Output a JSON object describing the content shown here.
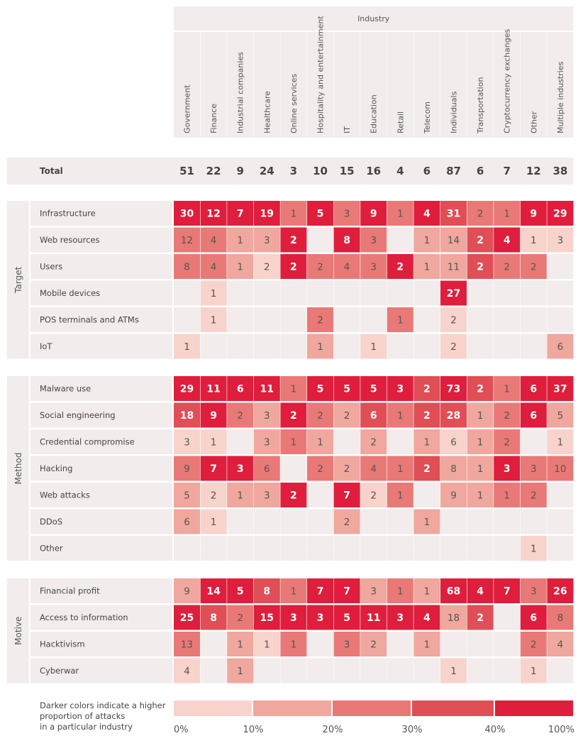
{
  "chart_data": {
    "type": "heatmap",
    "title": "",
    "column_header": "Industry",
    "columns": [
      "Government",
      "Finance",
      "Industrial companies",
      "Healthcare",
      "Online services",
      "Hospitality and entertainment",
      "IT",
      "Education",
      "Retail",
      "Telecom",
      "Individuals",
      "Transportation",
      "Cryptocurrency exchanges",
      "Other",
      "Multiple industries"
    ],
    "total_label": "Total",
    "totals": [
      51,
      22,
      9,
      24,
      3,
      10,
      15,
      16,
      4,
      6,
      87,
      6,
      7,
      12,
      38
    ],
    "groups": [
      {
        "name": "Target",
        "rows": [
          {
            "label": "Infrastructure",
            "values": [
              30,
              12,
              7,
              19,
              1,
              5,
              3,
              9,
              1,
              4,
              31,
              2,
              1,
              9,
              29
            ],
            "shades": [
              5,
              5,
              5,
              5,
              3,
              5,
              3,
              5,
              3,
              5,
              4,
              3,
              3,
              5,
              5
            ]
          },
          {
            "label": "Web resources",
            "values": [
              12,
              4,
              1,
              3,
              2,
              null,
              8,
              3,
              null,
              1,
              14,
              2,
              4,
              1,
              3
            ],
            "shades": [
              3,
              3,
              2,
              2,
              5,
              0,
              5,
              3,
              0,
              2,
              2,
              4,
              5,
              1,
              1
            ]
          },
          {
            "label": "Users",
            "values": [
              8,
              4,
              1,
              2,
              2,
              2,
              4,
              3,
              2,
              1,
              11,
              2,
              2,
              2,
              null
            ],
            "shades": [
              3,
              3,
              2,
              1,
              5,
              3,
              3,
              3,
              5,
              2,
              2,
              4,
              3,
              3,
              0
            ]
          },
          {
            "label": "Mobile devices",
            "values": [
              null,
              1,
              null,
              null,
              null,
              null,
              null,
              null,
              null,
              null,
              27,
              null,
              null,
              null,
              null
            ],
            "shades": [
              0,
              1,
              0,
              0,
              0,
              0,
              0,
              0,
              0,
              0,
              5,
              0,
              0,
              0,
              0
            ]
          },
          {
            "label": "POS terminals and ATMs",
            "values": [
              null,
              1,
              null,
              null,
              null,
              2,
              null,
              null,
              1,
              null,
              2,
              null,
              null,
              null,
              null
            ],
            "shades": [
              0,
              1,
              0,
              0,
              0,
              3,
              0,
              0,
              3,
              0,
              1,
              0,
              0,
              0,
              0
            ]
          },
          {
            "label": "IoT",
            "values": [
              1,
              null,
              null,
              null,
              null,
              1,
              null,
              1,
              null,
              null,
              2,
              null,
              null,
              null,
              6
            ],
            "shades": [
              1,
              0,
              0,
              0,
              0,
              2,
              0,
              1,
              0,
              0,
              1,
              0,
              0,
              0,
              2
            ]
          }
        ]
      },
      {
        "name": "Method",
        "rows": [
          {
            "label": "Malware use",
            "values": [
              29,
              11,
              6,
              11,
              1,
              5,
              5,
              5,
              3,
              2,
              73,
              2,
              1,
              6,
              37
            ],
            "shades": [
              5,
              5,
              5,
              5,
              3,
              5,
              5,
              5,
              5,
              4,
              5,
              4,
              3,
              5,
              5
            ]
          },
          {
            "label": "Social engineering",
            "values": [
              18,
              9,
              2,
              3,
              2,
              2,
              2,
              6,
              1,
              2,
              28,
              1,
              2,
              6,
              5
            ],
            "shades": [
              4,
              5,
              3,
              2,
              5,
              3,
              2,
              4,
              3,
              4,
              4,
              2,
              3,
              5,
              2
            ]
          },
          {
            "label": "Credential compromise",
            "values": [
              3,
              1,
              null,
              3,
              1,
              1,
              null,
              2,
              null,
              1,
              6,
              1,
              2,
              null,
              1
            ],
            "shades": [
              1,
              1,
              0,
              2,
              3,
              2,
              0,
              2,
              0,
              2,
              1,
              2,
              3,
              0,
              1
            ]
          },
          {
            "label": "Hacking",
            "values": [
              9,
              7,
              3,
              6,
              null,
              2,
              2,
              4,
              1,
              2,
              8,
              1,
              3,
              3,
              10
            ],
            "shades": [
              3,
              5,
              5,
              3,
              0,
              3,
              2,
              3,
              3,
              4,
              2,
              2,
              5,
              3,
              3
            ]
          },
          {
            "label": "Web attacks",
            "values": [
              5,
              2,
              1,
              3,
              2,
              null,
              7,
              2,
              1,
              null,
              9,
              1,
              1,
              2,
              null
            ],
            "shades": [
              2,
              1,
              2,
              2,
              5,
              0,
              5,
              1,
              3,
              0,
              2,
              2,
              3,
              3,
              0
            ]
          },
          {
            "label": "DDoS",
            "values": [
              6,
              1,
              null,
              null,
              null,
              null,
              2,
              null,
              null,
              1,
              null,
              null,
              null,
              null,
              null
            ],
            "shades": [
              2,
              1,
              0,
              0,
              0,
              0,
              2,
              0,
              0,
              2,
              0,
              0,
              0,
              0,
              0
            ]
          },
          {
            "label": "Other",
            "values": [
              null,
              null,
              null,
              null,
              null,
              null,
              null,
              null,
              null,
              null,
              null,
              null,
              null,
              1,
              null
            ],
            "shades": [
              0,
              0,
              0,
              0,
              0,
              0,
              0,
              0,
              0,
              0,
              0,
              0,
              0,
              1,
              0
            ]
          }
        ]
      },
      {
        "name": "Motive",
        "rows": [
          {
            "label": "Financial profit",
            "values": [
              9,
              14,
              5,
              8,
              1,
              7,
              7,
              3,
              1,
              1,
              68,
              4,
              7,
              3,
              26
            ],
            "shades": [
              2,
              5,
              5,
              4,
              3,
              5,
              5,
              2,
              3,
              2,
              5,
              5,
              5,
              3,
              5
            ]
          },
          {
            "label": "Access to information",
            "values": [
              25,
              8,
              2,
              15,
              3,
              3,
              5,
              11,
              3,
              4,
              18,
              2,
              null,
              6,
              8
            ],
            "shades": [
              5,
              4,
              3,
              5,
              5,
              5,
              5,
              5,
              5,
              5,
              2,
              4,
              0,
              5,
              3
            ]
          },
          {
            "label": "Hacktivism",
            "values": [
              13,
              null,
              1,
              1,
              1,
              null,
              3,
              2,
              null,
              1,
              null,
              null,
              null,
              2,
              4
            ],
            "shades": [
              3,
              0,
              2,
              1,
              3,
              0,
              3,
              2,
              0,
              2,
              0,
              0,
              0,
              3,
              2
            ]
          },
          {
            "label": "Cyberwar",
            "values": [
              4,
              null,
              1,
              null,
              null,
              null,
              null,
              null,
              null,
              null,
              1,
              null,
              null,
              1,
              null
            ],
            "shades": [
              1,
              0,
              2,
              0,
              0,
              0,
              0,
              0,
              0,
              0,
              1,
              0,
              0,
              1,
              0
            ]
          }
        ]
      }
    ],
    "legend": {
      "caption": [
        "Darker colors indicate a higher",
        "proportion of attacks",
        "in a particular industry"
      ],
      "stops": [
        "0%",
        "10%",
        "20%",
        "30%",
        "40%",
        "100%"
      ],
      "shade_colors": [
        "#f8d3cc",
        "#f0a79e",
        "#e97976",
        "#e04e56",
        "#de1e3c"
      ]
    },
    "colors": {
      "empty_cell": "#f2ecec",
      "header_bg": "#f2ecec",
      "text_dark": "#555555",
      "text_light": "#ffffff"
    }
  }
}
